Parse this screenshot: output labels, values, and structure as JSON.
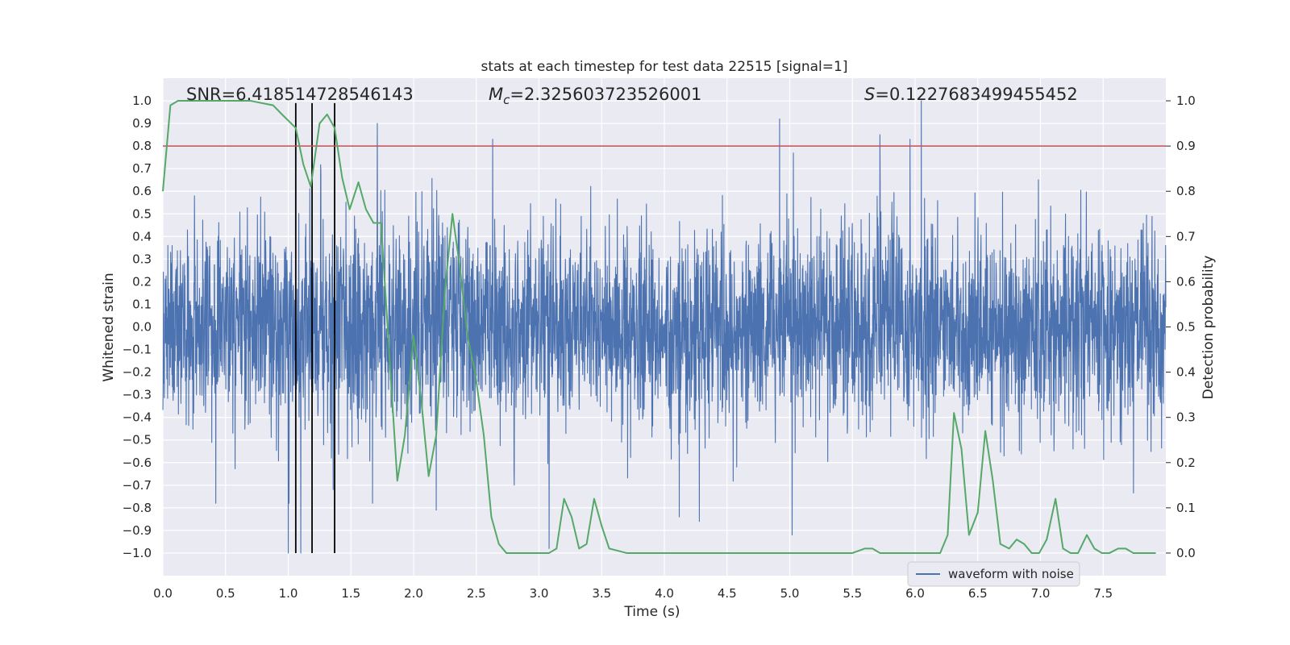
{
  "chart_data": {
    "type": "line",
    "title": "stats at each timestep for test data 22515 [signal=1]",
    "xlabel": "Time (s)",
    "ylabel": "Whitened strain",
    "y2label": "Detection probability",
    "xlim": [
      0.0,
      8.0
    ],
    "ylim": [
      -1.1,
      1.1
    ],
    "y2lim": [
      -0.05,
      1.05
    ],
    "xticks": [
      0.0,
      0.5,
      1.0,
      1.5,
      2.0,
      2.5,
      3.0,
      3.5,
      4.0,
      4.5,
      5.0,
      5.5,
      6.0,
      6.5,
      7.0,
      7.5
    ],
    "xtick_labels": [
      "0.0",
      "0.5",
      "1.0",
      "1.5",
      "2.0",
      "2.5",
      "3.0",
      "3.5",
      "4.0",
      "4.5",
      "5.0",
      "5.5",
      "6.0",
      "6.5",
      "7.0",
      "7.5"
    ],
    "yticks": [
      1.0,
      0.9,
      0.8,
      0.7,
      0.6,
      0.5,
      0.4,
      0.3,
      0.2,
      0.1,
      0.0,
      -0.1,
      -0.2,
      -0.3,
      -0.4,
      -0.5,
      -0.6,
      -0.7,
      -0.8,
      -0.9,
      -1.0
    ],
    "ytick_labels": [
      "1.0",
      "0.9",
      "0.8",
      "0.7",
      "0.6",
      "0.5",
      "0.4",
      "0.3",
      "0.2",
      "0.1",
      "0.0",
      "−0.1",
      "−0.2",
      "−0.3",
      "−0.4",
      "−0.5",
      "−0.6",
      "−0.7",
      "−0.8",
      "−0.9",
      "−1.0"
    ],
    "y2ticks": [
      1.0,
      0.9,
      0.8,
      0.7,
      0.6,
      0.5,
      0.4,
      0.3,
      0.2,
      0.1,
      0.0
    ],
    "y2tick_labels": [
      "1.0",
      "0.9",
      "0.8",
      "0.7",
      "0.6",
      "0.5",
      "0.4",
      "0.3",
      "0.2",
      "0.1",
      "0.0"
    ],
    "grid": true,
    "legend": {
      "entries": [
        "waveform with noise"
      ],
      "placement": "lower-right"
    },
    "annotations": {
      "snr": "SNR=6.418514728546143",
      "mc_symbol": "M",
      "mc_sub": "c",
      "mc_value": "=2.325603723526001",
      "s_symbol": "S",
      "s_value": "=0.1227683499455452"
    },
    "threshold": {
      "axis": "right",
      "value": 0.9,
      "color": "#c44e52"
    },
    "vertical_markers": {
      "x": [
        1.06,
        1.19,
        1.37
      ],
      "ymin": -1.0,
      "ymax": 0.99,
      "color": "#000000"
    },
    "waveform": {
      "name": "waveform with noise",
      "color": "#4c72b0",
      "t_range": [
        0.0,
        8.0
      ],
      "samples": 4000,
      "noise_scale": 0.22,
      "peak_abs": 1.0,
      "spikes": [
        {
          "x": 1.71,
          "y": 0.9
        },
        {
          "x": 2.63,
          "y": 0.83
        },
        {
          "x": 4.92,
          "y": 0.92
        },
        {
          "x": 5.72,
          "y": 0.85
        },
        {
          "x": 5.96,
          "y": 0.83
        },
        {
          "x": 6.05,
          "y": 1.0
        },
        {
          "x": 1.0,
          "y": -1.0
        },
        {
          "x": 1.1,
          "y": -1.0
        },
        {
          "x": 3.08,
          "y": -0.98
        },
        {
          "x": 5.02,
          "y": -0.92
        },
        {
          "x": 2.18,
          "y": -0.81
        },
        {
          "x": 4.28,
          "y": -0.86
        },
        {
          "x": 4.12,
          "y": -0.84
        }
      ]
    },
    "probability": {
      "name": "detection probability",
      "color": "#55a868",
      "axis": "right",
      "x": [
        0.0,
        0.06,
        0.12,
        0.3,
        0.5,
        0.7,
        0.88,
        0.95,
        1.06,
        1.12,
        1.18,
        1.25,
        1.31,
        1.37,
        1.43,
        1.49,
        1.56,
        1.62,
        1.68,
        1.74,
        1.87,
        1.93,
        2.0,
        2.06,
        2.12,
        2.18,
        2.25,
        2.31,
        2.37,
        2.43,
        2.49,
        2.56,
        2.62,
        2.68,
        2.74,
        2.82,
        2.95,
        3.08,
        3.14,
        3.2,
        3.26,
        3.32,
        3.38,
        3.44,
        3.5,
        3.56,
        3.7,
        3.9,
        4.2,
        4.5,
        4.8,
        5.0,
        5.1,
        5.2,
        5.4,
        5.5,
        5.6,
        5.66,
        5.72,
        5.8,
        5.86,
        5.92,
        6.0,
        6.1,
        6.2,
        6.26,
        6.31,
        6.37,
        6.43,
        6.5,
        6.56,
        6.62,
        6.68,
        6.75,
        6.81,
        6.87,
        6.93,
        6.99,
        7.05,
        7.12,
        7.18,
        7.24,
        7.3,
        7.37,
        7.43,
        7.49,
        7.55,
        7.62,
        7.68,
        7.74,
        7.8,
        7.86,
        7.92
      ],
      "y": [
        0.8,
        0.99,
        1.0,
        1.0,
        1.0,
        1.0,
        0.99,
        0.97,
        0.94,
        0.86,
        0.81,
        0.95,
        0.97,
        0.94,
        0.83,
        0.76,
        0.82,
        0.76,
        0.73,
        0.73,
        0.16,
        0.26,
        0.48,
        0.34,
        0.17,
        0.26,
        0.58,
        0.75,
        0.63,
        0.48,
        0.4,
        0.26,
        0.08,
        0.02,
        0.0,
        0.0,
        0.0,
        0.0,
        0.01,
        0.12,
        0.08,
        0.01,
        0.02,
        0.12,
        0.06,
        0.01,
        0.0,
        0.0,
        0.0,
        0.0,
        0.0,
        0.0,
        0.0,
        0.0,
        0.0,
        0.0,
        0.01,
        0.01,
        0.0,
        0.0,
        0.0,
        0.0,
        0.0,
        0.0,
        0.0,
        0.04,
        0.31,
        0.23,
        0.04,
        0.09,
        0.27,
        0.16,
        0.02,
        0.01,
        0.03,
        0.02,
        0.0,
        0.0,
        0.03,
        0.12,
        0.01,
        0.0,
        0.0,
        0.04,
        0.01,
        0.0,
        0.0,
        0.01,
        0.01,
        0.0,
        0.0,
        0.0,
        0.0
      ]
    }
  }
}
